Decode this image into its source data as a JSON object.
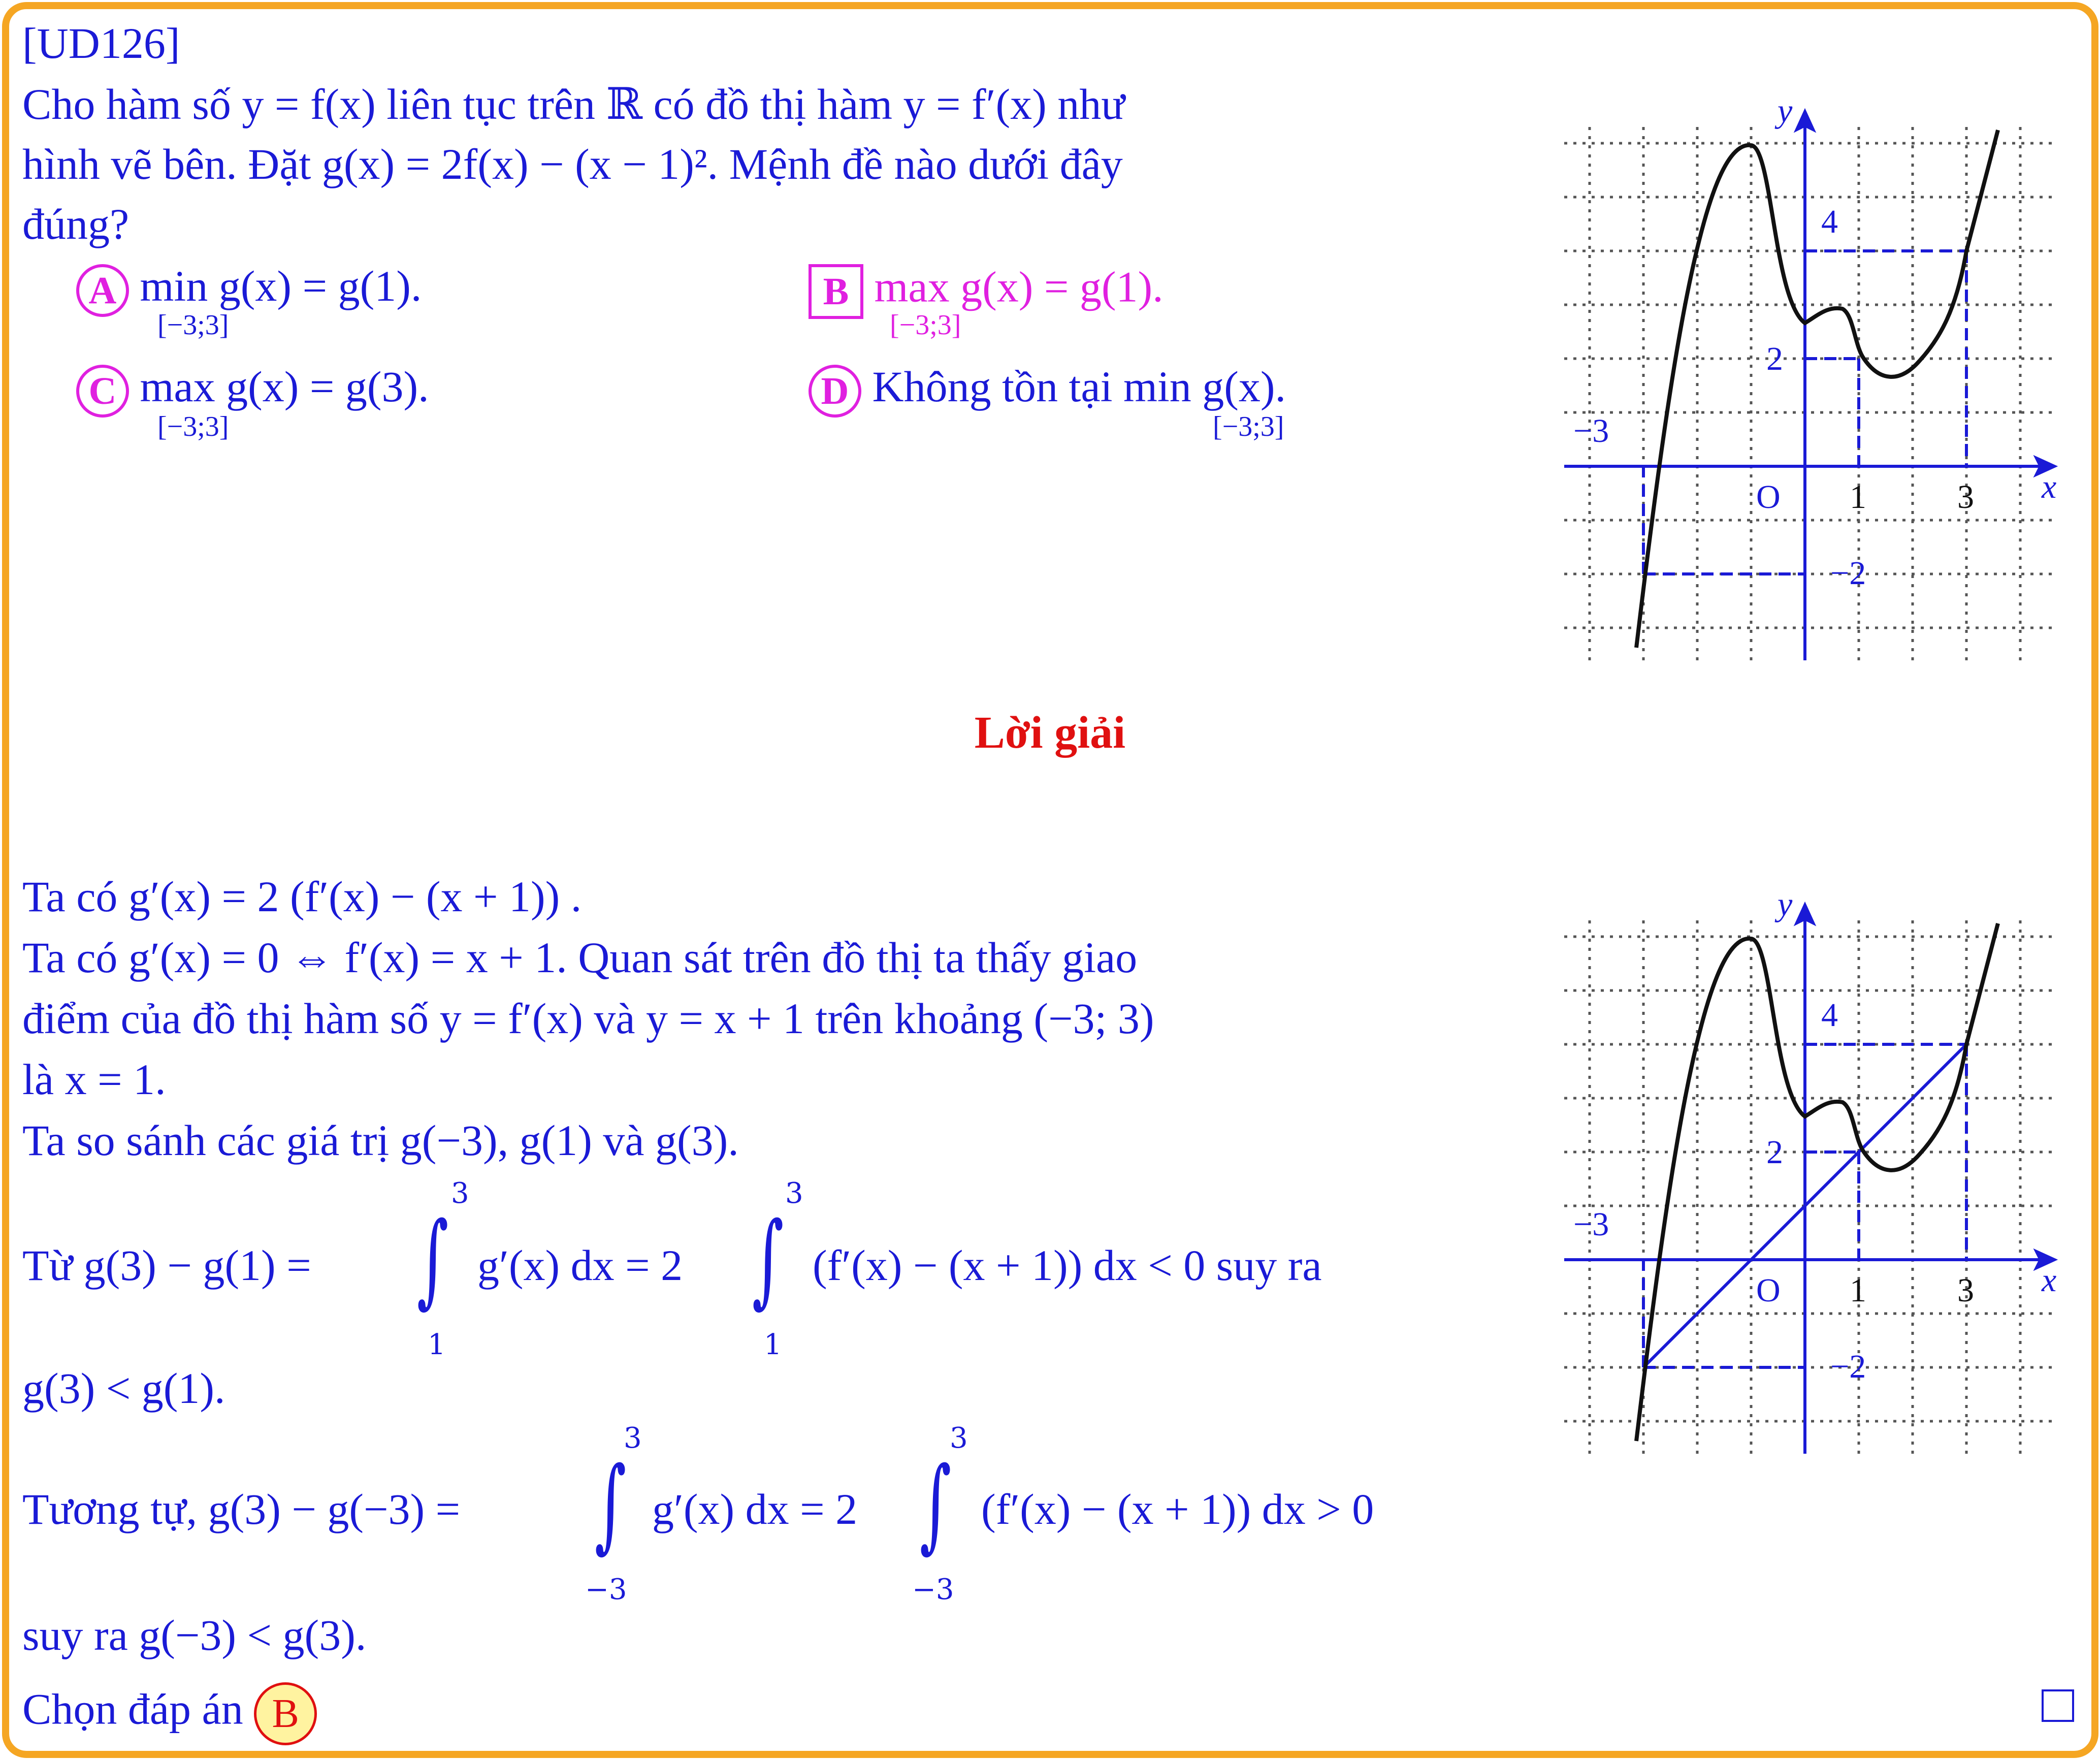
{
  "problem": {
    "code": "[UD126]",
    "line1": "Cho hàm số y = f(x) liên tục trên ℝ có đồ thị hàm y = f′(x) như",
    "line2": "hình vẽ bên. Đặt g(x) = 2f(x) − (x − 1)². Mệnh đề nào dưới đây",
    "line3": "đúng?"
  },
  "options": [
    {
      "letter": "A",
      "text": "min g(x) = g(1).",
      "sub": "[−3;3]"
    },
    {
      "letter": "B",
      "text": "max g(x) = g(1).",
      "sub": "[−3;3]"
    },
    {
      "letter": "C",
      "text": "max g(x) = g(3).",
      "sub": "[−3;3]"
    },
    {
      "letter": "D",
      "text": "Không tồn tại min g(x).",
      "sub": "[−3;3]"
    }
  ],
  "solution": {
    "heading": "Lời giải",
    "l1": "Ta có g′(x) = 2 (f′(x) − (x + 1)) .",
    "l2": "Ta có g′(x) = 0 ⇔ f′(x) = x + 1. Quan sát trên đồ thị ta thấy giao",
    "l3": "điểm của đồ thị hàm số y = f′(x) và y = x + 1 trên khoảng (−3; 3)",
    "l4": "là x = 1.",
    "l5": "Ta so sánh các giá trị g(−3), g(1) và g(3).",
    "l6a": "Từ g(3) − g(1) =",
    "l6b": "g′(x) dx = 2",
    "l6c": "(f′(x) − (x + 1)) dx < 0 suy ra",
    "l6_lower": "1",
    "l6_upper": "3",
    "l7": "g(3) < g(1).",
    "l8a": "Tương tự, g(3) − g(−3) =",
    "l8b": "g′(x) dx = 2",
    "l8c": "(f′(x) − (x + 1)) dx > 0",
    "l8_lower": "−3",
    "l8_upper": "3",
    "l9": "suy ra g(−3) < g(3).",
    "choose": "Chọn đáp án",
    "answer": "B"
  },
  "graph_labels": {
    "x": "x",
    "y": "y",
    "origin": "O",
    "x_ticks": [
      "1",
      "3"
    ],
    "x_neg": "−3",
    "y_ticks": [
      "2",
      "4"
    ],
    "y_neg": "−2"
  },
  "colors": {
    "frame": "#f5a623",
    "text": "#1a1ad6",
    "option": "#e020e0",
    "heading": "#e01010"
  }
}
